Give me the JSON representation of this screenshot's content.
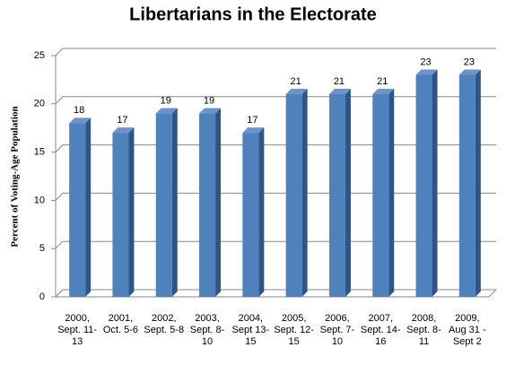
{
  "chart_data": {
    "type": "bar3d",
    "title": "Libertarians in the Electorate",
    "y_label": "Percent of Voting-Age Population",
    "categories": [
      "2000, Sept. 11-13",
      "2001, Oct. 5-6",
      "2002, Sept. 5-8",
      "2003, Sept. 8-10",
      "2004, Sept 13-15",
      "2005, Sept. 12-15",
      "2006, Sept. 7-10",
      "2007, Sept. 14-16",
      "2008, Sept. 8-11",
      "2009, Aug 31 - Sept 2"
    ],
    "values": [
      18,
      17,
      19,
      19,
      17,
      21,
      21,
      21,
      23,
      23
    ],
    "color": "#4f81bd",
    "ylim": [
      0,
      25
    ],
    "yticks": [
      0,
      5,
      10,
      15,
      20,
      25
    ],
    "grid": true
  }
}
